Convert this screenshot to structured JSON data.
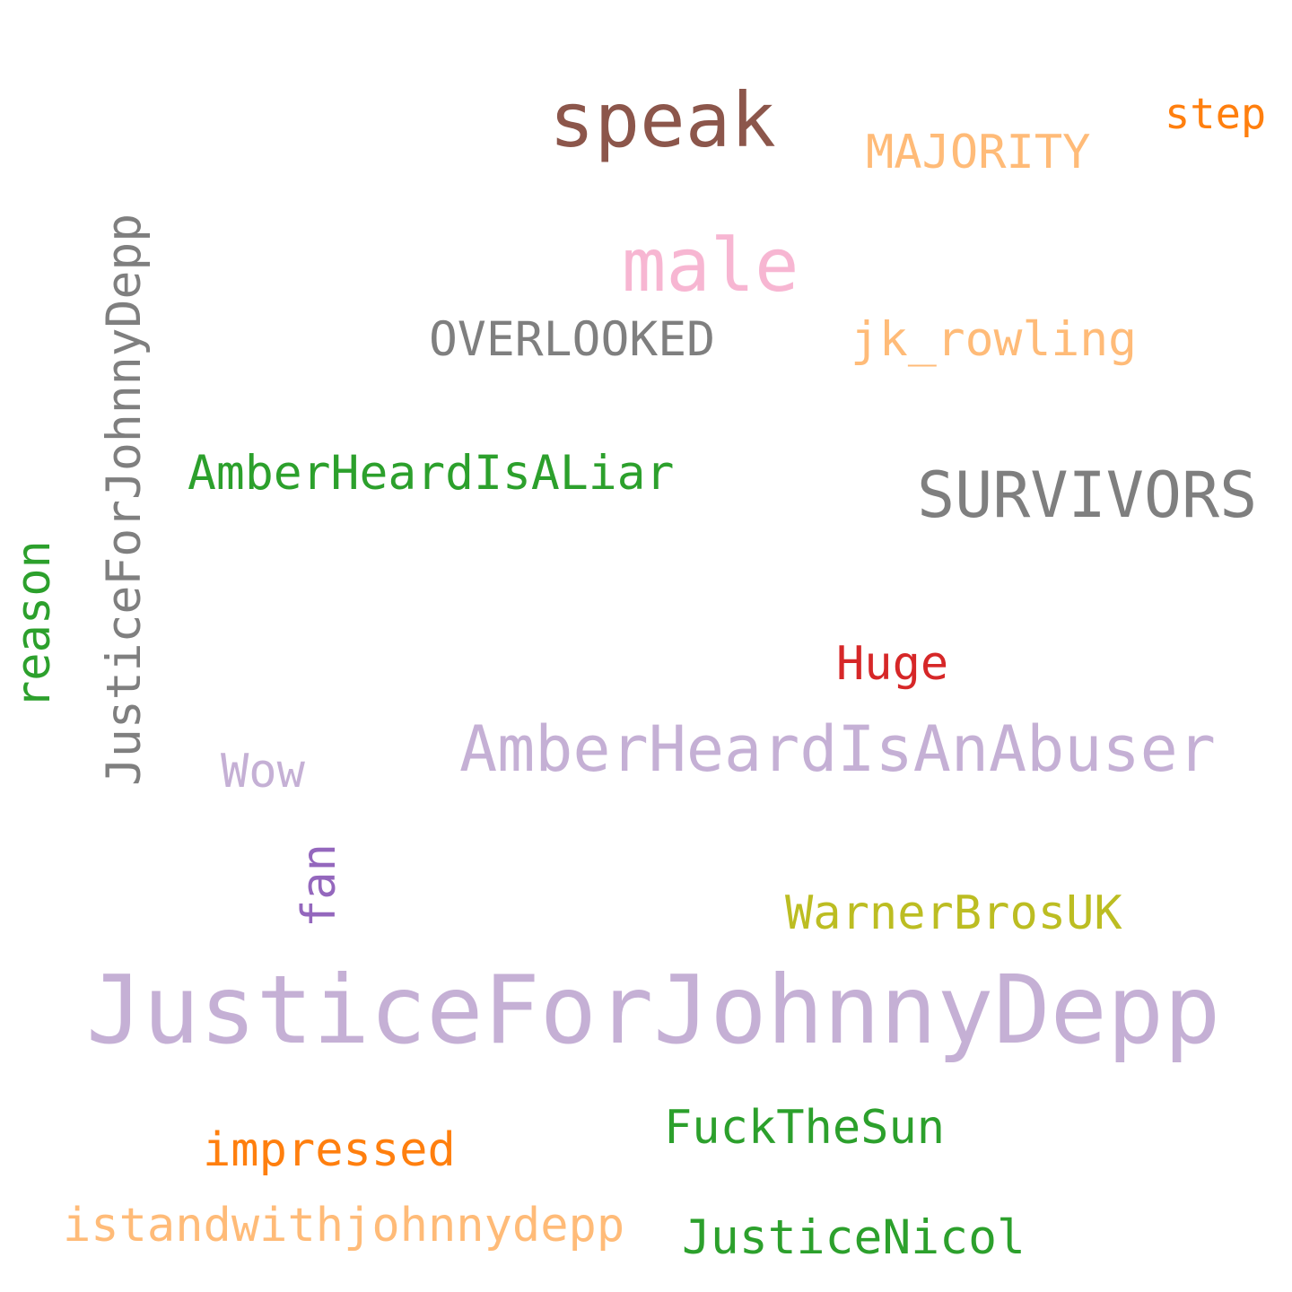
{
  "words": {
    "speak": {
      "text": "speak",
      "color": "#8c564b"
    },
    "step": {
      "text": "step",
      "color": "#ff7f0e"
    },
    "majority": {
      "text": "MAJORITY",
      "color": "#ffbb78"
    },
    "male": {
      "text": "male",
      "color": "#f7b6d2"
    },
    "overlooked": {
      "text": "OVERLOOKED",
      "color": "#7f7f7f"
    },
    "jk_rowling": {
      "text": "jk_rowling",
      "color": "#ffbb78"
    },
    "justice_vertical": {
      "text": "JusticeForJohnnyDepp",
      "color": "#7f7f7f"
    },
    "amber_liar": {
      "text": "AmberHeardIsALiar",
      "color": "#2ca02c"
    },
    "survivors": {
      "text": "SURVIVORS",
      "color": "#7f7f7f"
    },
    "reason": {
      "text": "reason",
      "color": "#2ca02c"
    },
    "huge": {
      "text": "Huge",
      "color": "#d62728"
    },
    "amber_abuser": {
      "text": "AmberHeardIsAnAbuser",
      "color": "#c5b0d5"
    },
    "wow": {
      "text": "Wow",
      "color": "#c5b0d5"
    },
    "fan": {
      "text": "fan",
      "color": "#9467bd"
    },
    "warnerbros": {
      "text": "WarnerBrosUK",
      "color": "#bcbd22"
    },
    "justice_main": {
      "text": "JusticeForJohnnyDepp",
      "color": "#c5b0d5"
    },
    "fuckthesun": {
      "text": "FuckTheSun",
      "color": "#2ca02c"
    },
    "impressed": {
      "text": "impressed",
      "color": "#ff7f0e"
    },
    "istand": {
      "text": "istandwithjohnnydepp",
      "color": "#ffbb78"
    },
    "justicenicol": {
      "text": "JusticeNicol",
      "color": "#2ca02c"
    }
  }
}
